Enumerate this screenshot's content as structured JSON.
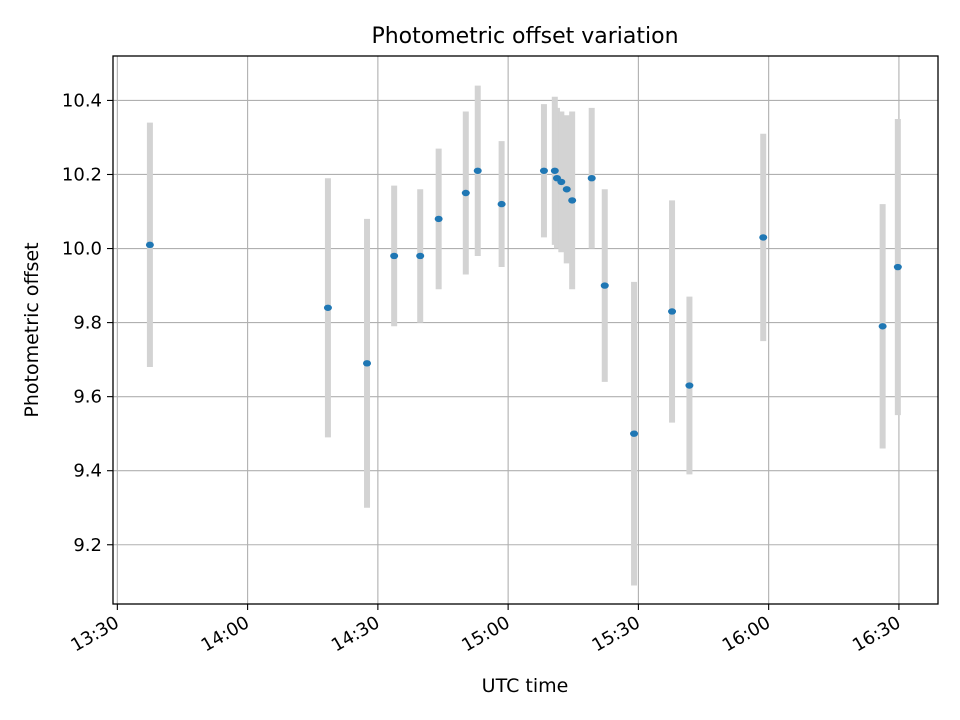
{
  "chart_data": {
    "type": "scatter",
    "title": "Photometric offset variation",
    "xlabel": "UTC time",
    "ylabel": "Photometric offset",
    "x_unit": "UTC time (HH:MM)",
    "xlim": [
      "13:29",
      "16:39"
    ],
    "ylim": [
      9.04,
      10.52
    ],
    "grid": true,
    "x_ticks": [
      "13:30",
      "14:00",
      "14:30",
      "15:00",
      "15:30",
      "16:00",
      "16:30"
    ],
    "y_ticks": [
      9.2,
      9.4,
      9.6,
      9.8,
      10.0,
      10.2,
      10.4
    ],
    "y_tick_labels": [
      "9.2",
      "9.4",
      "9.6",
      "9.8",
      "10.0",
      "10.2",
      "10.4"
    ],
    "marker_color": "#1f77b4",
    "errorbar_color": "#d3d3d3",
    "points": [
      {
        "x": "13:37:30",
        "y": 10.01,
        "err": 0.33
      },
      {
        "x": "14:18:30",
        "y": 9.84,
        "err": 0.35
      },
      {
        "x": "14:27:30",
        "y": 9.69,
        "err": 0.39
      },
      {
        "x": "14:33:45",
        "y": 9.98,
        "err": 0.19
      },
      {
        "x": "14:39:45",
        "y": 9.98,
        "err": 0.18
      },
      {
        "x": "14:44:00",
        "y": 10.08,
        "err": 0.19
      },
      {
        "x": "14:50:15",
        "y": 10.15,
        "err": 0.22
      },
      {
        "x": "14:53:00",
        "y": 10.21,
        "err": 0.23
      },
      {
        "x": "14:58:30",
        "y": 10.12,
        "err": 0.17
      },
      {
        "x": "15:08:15",
        "y": 10.21,
        "err": 0.18
      },
      {
        "x": "15:10:45",
        "y": 10.21,
        "err": 0.2
      },
      {
        "x": "15:11:15",
        "y": 10.19,
        "err": 0.19
      },
      {
        "x": "15:12:15",
        "y": 10.18,
        "err": 0.19
      },
      {
        "x": "15:13:30",
        "y": 10.16,
        "err": 0.2
      },
      {
        "x": "15:14:45",
        "y": 10.13,
        "err": 0.24
      },
      {
        "x": "15:19:15",
        "y": 10.19,
        "err": 0.19
      },
      {
        "x": "15:22:15",
        "y": 9.9,
        "err": 0.26
      },
      {
        "x": "15:29:00",
        "y": 9.5,
        "err": 0.41
      },
      {
        "x": "15:37:45",
        "y": 9.83,
        "err": 0.3
      },
      {
        "x": "15:41:45",
        "y": 9.63,
        "err": 0.24
      },
      {
        "x": "15:58:45",
        "y": 10.03,
        "err": 0.28
      },
      {
        "x": "16:26:15",
        "y": 9.79,
        "err": 0.33
      },
      {
        "x": "16:29:45",
        "y": 9.95,
        "err": 0.4
      }
    ]
  }
}
